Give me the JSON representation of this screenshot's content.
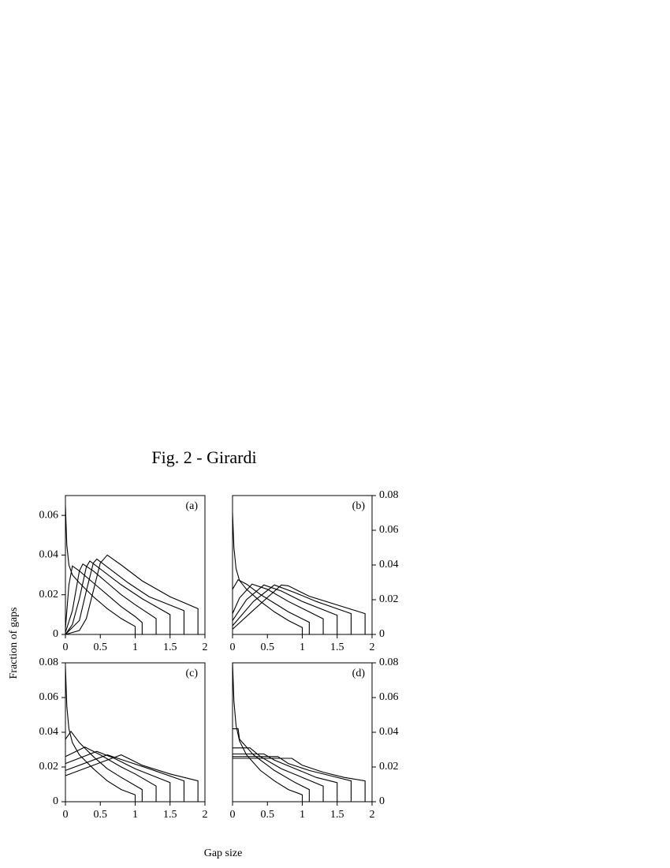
{
  "title": "Fig. 2 - Girardi",
  "x_label": "Gap size",
  "y_label": "Fraction of gaps",
  "chart_data": [
    {
      "type": "line",
      "label": "(a)",
      "color": "#000000",
      "yaxis_side": "left",
      "xlim": [
        0,
        2
      ],
      "xticks": [
        0,
        0.5,
        1,
        1.5,
        2
      ],
      "ylim": [
        0,
        0.07
      ],
      "yticks": [
        0,
        0.02,
        0.04,
        0.06
      ],
      "series": [
        {
          "x": [
            0,
            0.02,
            0.05,
            0.1,
            0.2,
            0.4,
            0.6,
            0.8,
            1.0,
            1.0
          ],
          "values": [
            0.065,
            0.045,
            0.035,
            0.03,
            0.026,
            0.019,
            0.013,
            0.008,
            0.004,
            0
          ]
        },
        {
          "x": [
            0,
            0.05,
            0.1,
            0.2,
            0.4,
            0.6,
            0.8,
            1.0,
            1.1,
            1.1
          ],
          "values": [
            0.003,
            0.025,
            0.0345,
            0.032,
            0.026,
            0.02,
            0.014,
            0.009,
            0.006,
            0
          ]
        },
        {
          "x": [
            0,
            0.1,
            0.2,
            0.25,
            0.4,
            0.6,
            0.8,
            1.0,
            1.3,
            1.3
          ],
          "values": [
            0.001,
            0.012,
            0.032,
            0.0355,
            0.032,
            0.026,
            0.02,
            0.015,
            0.008,
            0
          ]
        },
        {
          "x": [
            0,
            0.1,
            0.2,
            0.3,
            0.35,
            0.5,
            0.8,
            1.1,
            1.5,
            1.5
          ],
          "values": [
            0,
            0.005,
            0.018,
            0.034,
            0.037,
            0.033,
            0.025,
            0.018,
            0.01,
            0
          ]
        },
        {
          "x": [
            0,
            0.2,
            0.3,
            0.4,
            0.45,
            0.6,
            0.9,
            1.2,
            1.7,
            1.7
          ],
          "values": [
            0,
            0.007,
            0.022,
            0.036,
            0.038,
            0.034,
            0.026,
            0.019,
            0.012,
            0
          ]
        },
        {
          "x": [
            0,
            0.2,
            0.3,
            0.4,
            0.5,
            0.6,
            0.8,
            1.1,
            1.5,
            1.9,
            1.9
          ],
          "values": [
            0,
            0.002,
            0.008,
            0.022,
            0.036,
            0.04,
            0.035,
            0.027,
            0.019,
            0.013,
            0
          ]
        }
      ]
    },
    {
      "type": "line",
      "label": "(b)",
      "color": "#000000",
      "yaxis_side": "right",
      "xlim": [
        0,
        2
      ],
      "xticks": [
        0,
        0.5,
        1,
        1.5,
        2
      ],
      "ylim": [
        0,
        0.08
      ],
      "yticks": [
        0,
        0.02,
        0.04,
        0.06,
        0.08
      ],
      "series": [
        {
          "x": [
            0,
            0.02,
            0.05,
            0.1,
            0.2,
            0.4,
            0.6,
            0.8,
            1.0,
            1.0
          ],
          "values": [
            0.07,
            0.05,
            0.038,
            0.031,
            0.026,
            0.019,
            0.013,
            0.008,
            0.004,
            0
          ]
        },
        {
          "x": [
            0,
            0.08,
            0.2,
            0.4,
            0.6,
            0.8,
            1.1,
            1.1
          ],
          "values": [
            0.026,
            0.0315,
            0.029,
            0.023,
            0.018,
            0.013,
            0.007,
            0
          ]
        },
        {
          "x": [
            0,
            0.1,
            0.28,
            0.5,
            0.8,
            1.0,
            1.3,
            1.3
          ],
          "values": [
            0.012,
            0.021,
            0.029,
            0.026,
            0.019,
            0.015,
            0.009,
            0
          ]
        },
        {
          "x": [
            0,
            0.2,
            0.45,
            0.7,
            1.0,
            1.5,
            1.5
          ],
          "values": [
            0.008,
            0.02,
            0.0285,
            0.025,
            0.019,
            0.011,
            0
          ]
        },
        {
          "x": [
            0,
            0.3,
            0.6,
            0.9,
            1.2,
            1.7,
            1.7
          ],
          "values": [
            0.005,
            0.019,
            0.0285,
            0.024,
            0.019,
            0.012,
            0
          ]
        },
        {
          "x": [
            0,
            0.3,
            0.7,
            0.8,
            1.1,
            1.5,
            1.9,
            1.9
          ],
          "values": [
            0.003,
            0.014,
            0.0285,
            0.028,
            0.022,
            0.017,
            0.012,
            0
          ]
        }
      ]
    },
    {
      "type": "line",
      "label": "(c)",
      "color": "#000000",
      "yaxis_side": "left",
      "xlim": [
        0,
        2
      ],
      "xticks": [
        0,
        0.5,
        1,
        1.5,
        2
      ],
      "ylim": [
        0,
        0.08
      ],
      "yticks": [
        0,
        0.02,
        0.04,
        0.06,
        0.08
      ],
      "series": [
        {
          "x": [
            0,
            0.02,
            0.05,
            0.1,
            0.2,
            0.4,
            0.6,
            0.8,
            1.0,
            1.0
          ],
          "values": [
            0.078,
            0.055,
            0.042,
            0.034,
            0.027,
            0.019,
            0.012,
            0.007,
            0.004,
            0
          ]
        },
        {
          "x": [
            0,
            0.08,
            0.2,
            0.4,
            0.6,
            0.8,
            1.1,
            1.1
          ],
          "values": [
            0.036,
            0.0405,
            0.034,
            0.026,
            0.019,
            0.014,
            0.007,
            0
          ]
        },
        {
          "x": [
            0,
            0.28,
            0.5,
            0.8,
            1.0,
            1.3,
            1.3
          ],
          "values": [
            0.026,
            0.0315,
            0.027,
            0.02,
            0.016,
            0.009,
            0
          ]
        },
        {
          "x": [
            0,
            0.45,
            0.7,
            1.0,
            1.5,
            1.5
          ],
          "values": [
            0.022,
            0.029,
            0.025,
            0.019,
            0.011,
            0
          ]
        },
        {
          "x": [
            0,
            0.6,
            0.9,
            1.2,
            1.7,
            1.7
          ],
          "values": [
            0.018,
            0.027,
            0.023,
            0.019,
            0.012,
            0
          ]
        },
        {
          "x": [
            0,
            0.8,
            1.1,
            1.5,
            1.9,
            1.9
          ],
          "values": [
            0.015,
            0.027,
            0.021,
            0.016,
            0.012,
            0
          ]
        }
      ]
    },
    {
      "type": "line",
      "label": "(d)",
      "color": "#000000",
      "yaxis_side": "right",
      "xlim": [
        0,
        2
      ],
      "xticks": [
        0,
        0.5,
        1,
        1.5,
        2
      ],
      "ylim": [
        0,
        0.08
      ],
      "yticks": [
        0,
        0.02,
        0.04,
        0.06,
        0.08
      ],
      "series": [
        {
          "x": [
            0,
            0.02,
            0.05,
            0.1,
            0.2,
            0.4,
            0.6,
            0.8,
            1.0,
            1.0
          ],
          "values": [
            0.08,
            0.058,
            0.044,
            0.035,
            0.027,
            0.018,
            0.012,
            0.007,
            0.004,
            0
          ]
        },
        {
          "x": [
            0,
            0.08,
            0.1,
            0.3,
            0.6,
            0.9,
            1.1,
            1.1
          ],
          "values": [
            0.042,
            0.042,
            0.036,
            0.027,
            0.018,
            0.011,
            0.007,
            0
          ]
        },
        {
          "x": [
            0,
            0.25,
            0.4,
            0.7,
            1.0,
            1.3,
            1.3
          ],
          "values": [
            0.031,
            0.031,
            0.026,
            0.019,
            0.014,
            0.009,
            0
          ]
        },
        {
          "x": [
            0,
            0.45,
            0.6,
            0.9,
            1.2,
            1.5,
            1.5
          ],
          "values": [
            0.0275,
            0.0275,
            0.024,
            0.019,
            0.014,
            0.011,
            0
          ]
        },
        {
          "x": [
            0,
            0.65,
            0.8,
            1.1,
            1.4,
            1.7,
            1.7
          ],
          "values": [
            0.026,
            0.026,
            0.022,
            0.018,
            0.015,
            0.012,
            0
          ]
        },
        {
          "x": [
            0,
            0.85,
            1.0,
            1.3,
            1.6,
            1.9,
            1.9
          ],
          "values": [
            0.025,
            0.025,
            0.021,
            0.017,
            0.014,
            0.012,
            0
          ]
        }
      ]
    }
  ]
}
